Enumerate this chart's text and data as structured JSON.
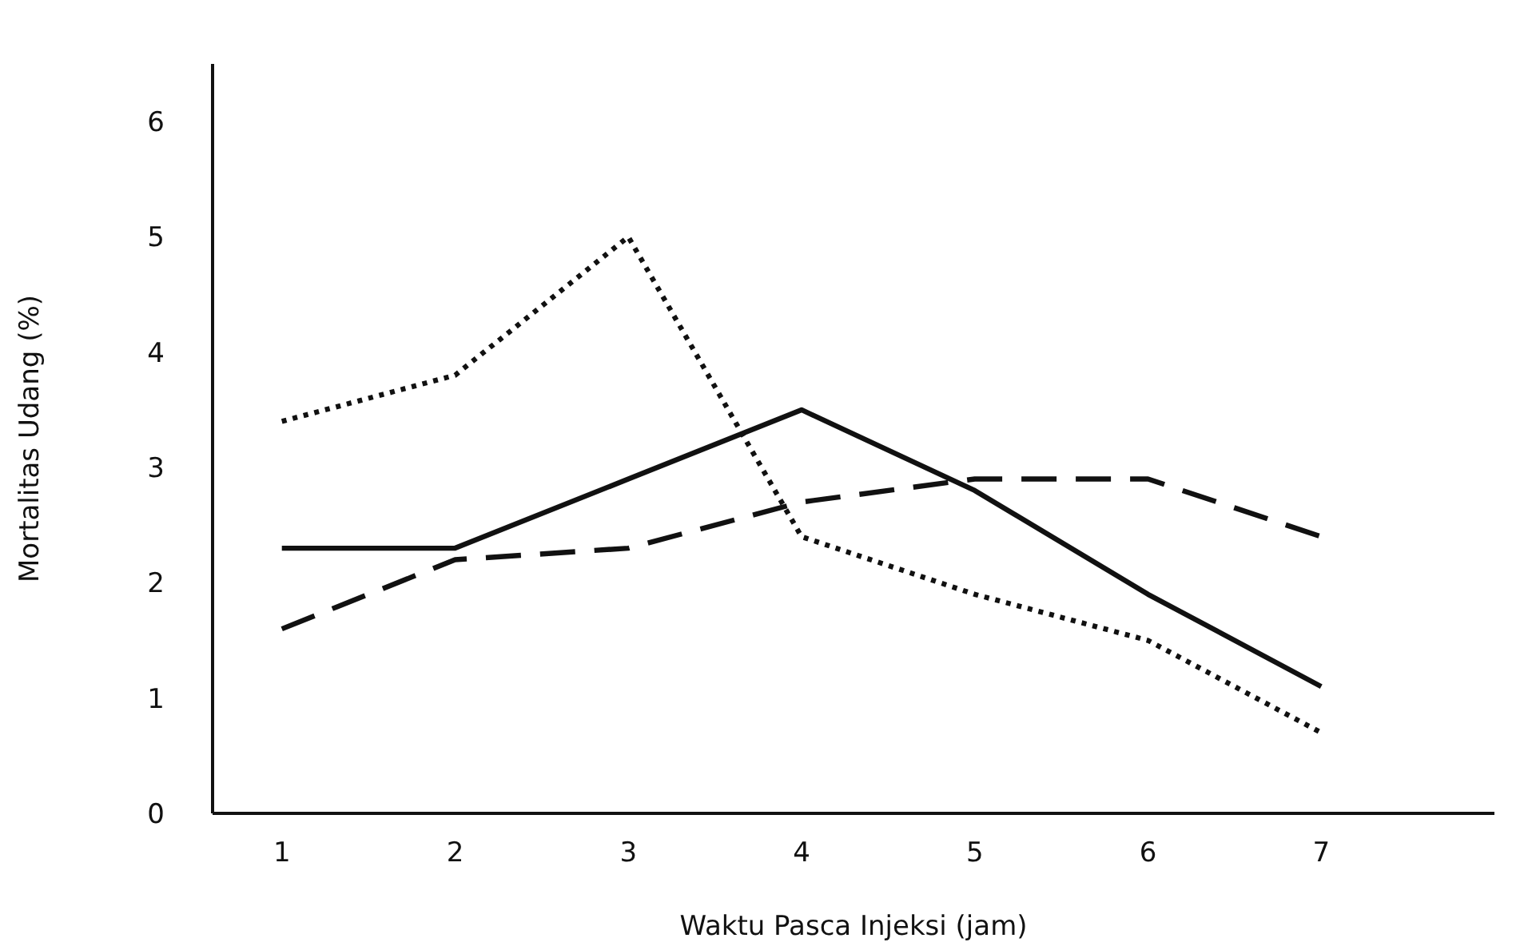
{
  "chart_data": {
    "type": "line",
    "xlabel": "Waktu Pasca Injeksi (jam)",
    "ylabel": "Mortalitas Udang (%)",
    "x": [
      1,
      2,
      3,
      4,
      5,
      6,
      7
    ],
    "xlim": [
      0.6,
      8.0
    ],
    "xticks": [
      1,
      2,
      3,
      4,
      5,
      6,
      7
    ],
    "ylim": [
      0,
      6.5
    ],
    "yticks": [
      0,
      1,
      2,
      3,
      4,
      5,
      6
    ],
    "marker": "none",
    "series": [
      {
        "color": "#111111",
        "line_style": "solid",
        "values": [
          2.3,
          2.3,
          2.9,
          3.5,
          2.8,
          1.9,
          1.1
        ]
      },
      {
        "color": "#111111",
        "line_style": "dotted",
        "values": [
          3.4,
          3.8,
          5.0,
          2.4,
          1.9,
          1.5,
          0.7
        ]
      },
      {
        "color": "#111111",
        "line_style": "dashed",
        "values": [
          1.6,
          2.2,
          2.3,
          2.7,
          2.9,
          2.9,
          2.4
        ]
      }
    ]
  }
}
